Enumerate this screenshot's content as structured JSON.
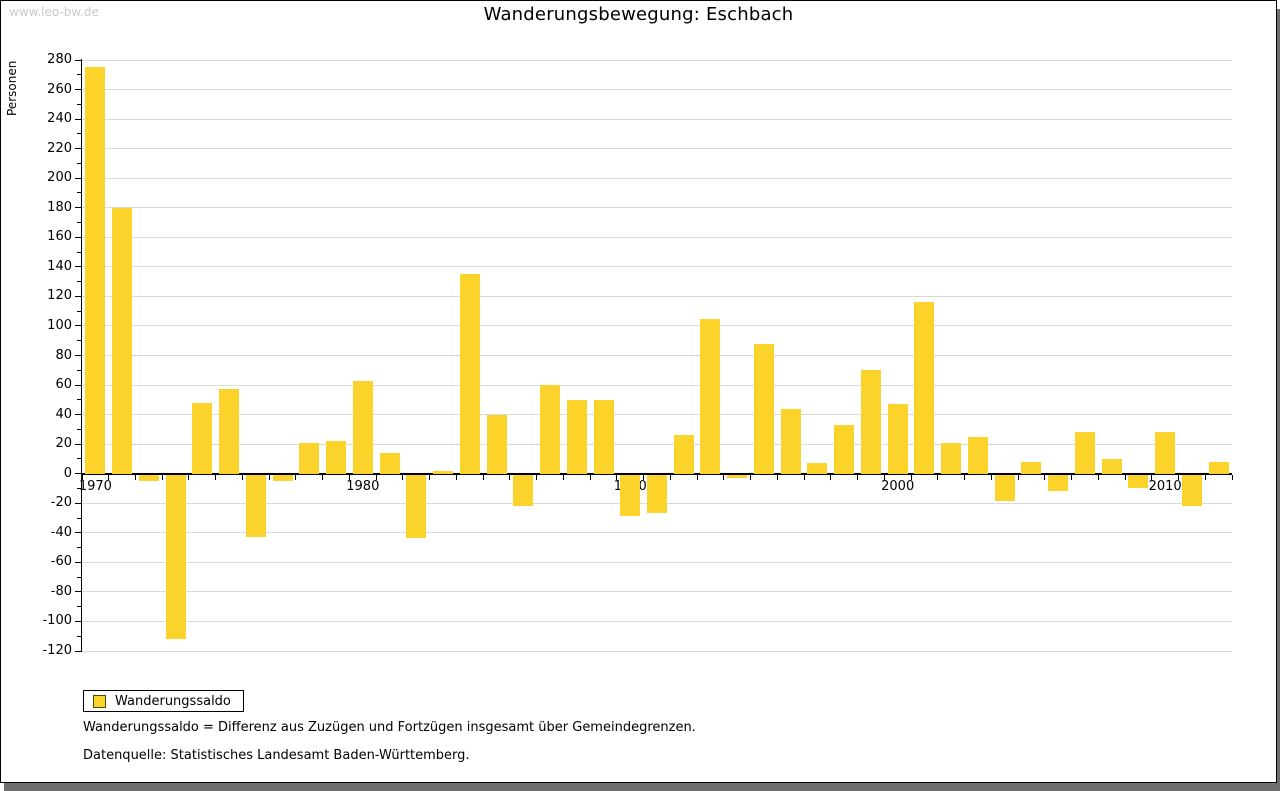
{
  "header": {
    "watermark": "www.leo-bw.de",
    "title": "Wanderungsbewegung: Eschbach"
  },
  "chart_data": {
    "type": "bar",
    "title": "Wanderungsbewegung: Eschbach",
    "ylabel": "Personen",
    "legend_label": "Wanderungssaldo",
    "ylim": [
      -120,
      280
    ],
    "ytick_step": 20,
    "yticks": [
      280,
      260,
      240,
      220,
      200,
      180,
      160,
      140,
      120,
      100,
      80,
      60,
      40,
      20,
      0,
      -20,
      -40,
      -60,
      -80,
      -100,
      -120
    ],
    "xticks": [
      "1970",
      "1980",
      "1990",
      "2000",
      "2010"
    ],
    "grid": true,
    "legend_position": "bottom-left",
    "bar_color": "#fcd32b",
    "categories": [
      1970,
      1971,
      1972,
      1973,
      1974,
      1975,
      1976,
      1977,
      1978,
      1979,
      1980,
      1981,
      1982,
      1983,
      1984,
      1985,
      1986,
      1987,
      1988,
      1989,
      1990,
      1991,
      1992,
      1993,
      1994,
      1995,
      1996,
      1997,
      1998,
      1999,
      2000,
      2001,
      2002,
      2003,
      2004,
      2005,
      2006,
      2007,
      2008,
      2009,
      2010,
      2011,
      2012
    ],
    "values": [
      275,
      180,
      -4,
      -111,
      48,
      57,
      -42,
      -4,
      21,
      22,
      63,
      14,
      -43,
      2,
      135,
      40,
      -21,
      60,
      50,
      50,
      -28,
      -26,
      26,
      105,
      -2,
      88,
      44,
      7,
      33,
      70,
      47,
      116,
      21,
      25,
      -18,
      8,
      -11,
      28,
      10,
      -9,
      28,
      -21,
      8
    ],
    "series": [
      {
        "name": "Wanderungssaldo"
      }
    ]
  },
  "footer": {
    "note": "Wanderungssaldo = Differenz aus Zuzügen und Fortzügen insgesamt über Gemeindegrenzen.",
    "source": "Datenquelle: Statistisches Landesamt Baden-Württemberg."
  }
}
